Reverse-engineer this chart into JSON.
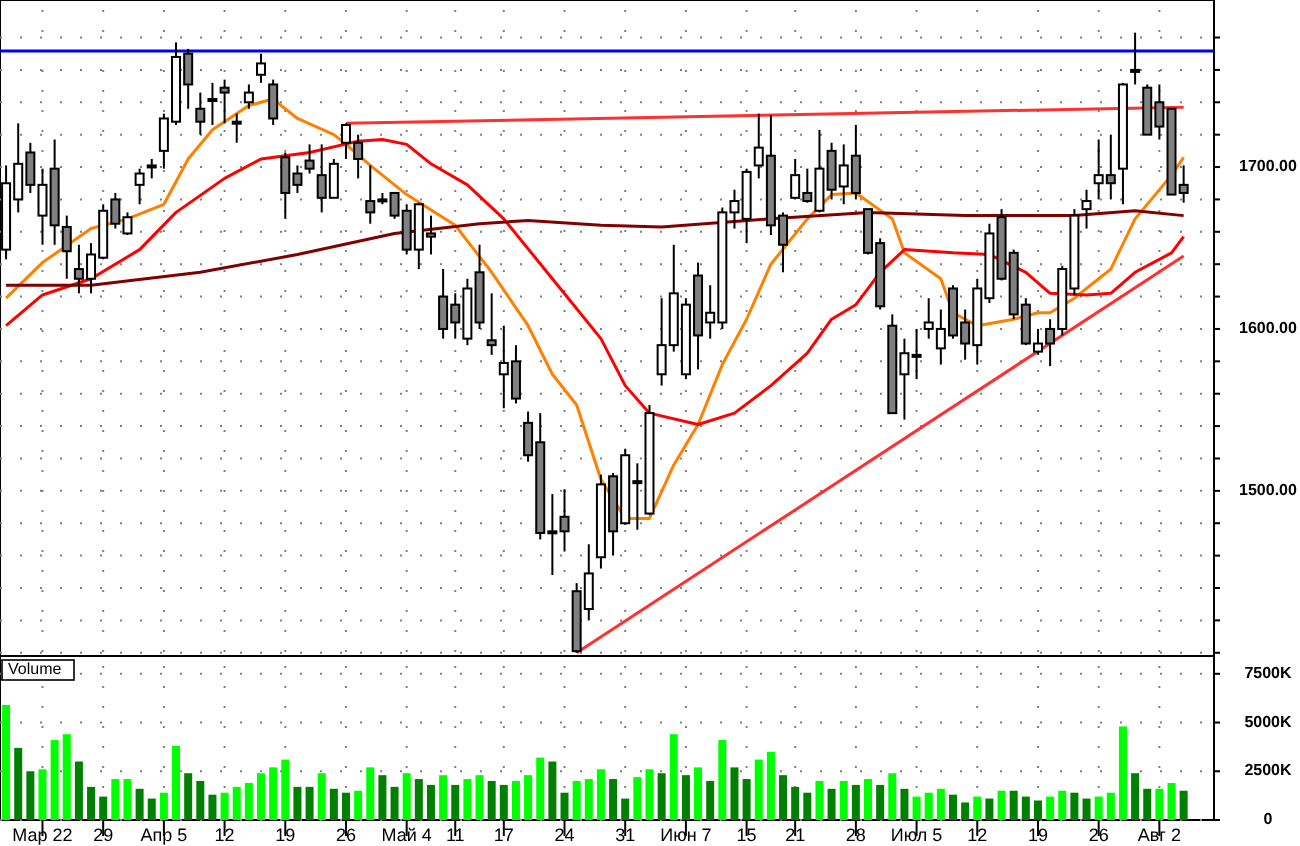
{
  "chart_data": [
    {
      "type": "candlestick",
      "categories": [
        null,
        null,
        null,
        null,
        null,
        null,
        null,
        null,
        null,
        null,
        null,
        null,
        null,
        null,
        null,
        null,
        null,
        null,
        null,
        null,
        null,
        null,
        null,
        null,
        null,
        null,
        null,
        null,
        null,
        null,
        null,
        null,
        null,
        null,
        null,
        null,
        null,
        null,
        null,
        null,
        null,
        null,
        null,
        null,
        null,
        null,
        null,
        null,
        null,
        null,
        null,
        null,
        null,
        null,
        null,
        null,
        null,
        null,
        null,
        null,
        null,
        null,
        null,
        null,
        null,
        null,
        null,
        null,
        null,
        null,
        null,
        null,
        null,
        null,
        null,
        null,
        null,
        null,
        null,
        null,
        null,
        null,
        null,
        null,
        null,
        null,
        null,
        null,
        null,
        null,
        null,
        null,
        null,
        null,
        null,
        null,
        null,
        null
      ],
      "ohlc": [
        [
          1649,
          1701,
          1643,
          1690
        ],
        [
          1680,
          1727,
          1672,
          1702
        ],
        [
          1709,
          1715,
          1684,
          1689
        ],
        [
          1670,
          1699,
          1652,
          1689
        ],
        [
          1699,
          1717,
          1652,
          1664
        ],
        [
          1663,
          1670,
          1631,
          1648
        ],
        [
          1637,
          1652,
          1622,
          1631
        ],
        [
          1631,
          1653,
          1622,
          1646
        ],
        [
          1644,
          1677,
          1643,
          1673
        ],
        [
          1680,
          1684,
          1662,
          1665
        ],
        [
          1659,
          1672,
          1658,
          1669
        ],
        [
          1689,
          1699,
          1677,
          1696
        ],
        [
          1701,
          1705,
          1693,
          1701
        ],
        [
          1710,
          1733,
          1699,
          1730
        ],
        [
          1728,
          1777,
          1726,
          1768
        ],
        [
          1770,
          1773,
          1736,
          1751
        ],
        [
          1736,
          1746,
          1720,
          1728
        ],
        [
          1741,
          1752,
          1726,
          1742
        ],
        [
          1749,
          1754,
          1727,
          1746
        ],
        [
          1728,
          1733,
          1715,
          1728
        ],
        [
          1740,
          1751,
          1736,
          1746
        ],
        [
          1757,
          1770,
          1752,
          1764
        ],
        [
          1751,
          1754,
          1726,
          1730
        ],
        [
          1706,
          1709,
          1668,
          1684
        ],
        [
          1696,
          1701,
          1684,
          1689
        ],
        [
          1704,
          1714,
          1696,
          1699
        ],
        [
          1695,
          1714,
          1672,
          1681
        ],
        [
          1681,
          1705,
          1681,
          1702
        ],
        [
          1715,
          1727,
          1705,
          1726
        ],
        [
          1715,
          1720,
          1693,
          1705
        ],
        [
          1679,
          1701,
          1665,
          1672
        ],
        [
          1680,
          1684,
          1677,
          1680
        ],
        [
          1684,
          1684,
          1668,
          1670
        ],
        [
          1673,
          1677,
          1646,
          1649
        ],
        [
          1649,
          1678,
          1637,
          1677
        ],
        [
          1659,
          1670,
          1646,
          1657
        ],
        [
          1620,
          1637,
          1594,
          1600
        ],
        [
          1615,
          1622,
          1594,
          1604
        ],
        [
          1594,
          1631,
          1590,
          1625
        ],
        [
          1635,
          1652,
          1600,
          1604
        ],
        [
          1593,
          1622,
          1584,
          1590
        ],
        [
          1572,
          1602,
          1551,
          1579
        ],
        [
          1580,
          1590,
          1554,
          1557
        ],
        [
          1542,
          1549,
          1518,
          1522
        ],
        [
          1530,
          1548,
          1470,
          1474
        ],
        [
          1475,
          1498,
          1448,
          1474
        ],
        [
          1484,
          1501,
          1463,
          1475
        ],
        [
          1438,
          1443,
          1400,
          1401
        ],
        [
          1427,
          1467,
          1420,
          1449
        ],
        [
          1459,
          1510,
          1452,
          1504
        ],
        [
          1509,
          1511,
          1460,
          1475
        ],
        [
          1480,
          1526,
          1479,
          1522
        ],
        [
          1506,
          1517,
          1476,
          1506
        ],
        [
          1486,
          1553,
          1485,
          1548
        ],
        [
          1572,
          1619,
          1565,
          1590
        ],
        [
          1590,
          1652,
          1586,
          1622
        ],
        [
          1572,
          1619,
          1569,
          1615
        ],
        [
          1633,
          1641,
          1575,
          1596
        ],
        [
          1604,
          1627,
          1594,
          1610
        ],
        [
          1604,
          1675,
          1600,
          1672
        ],
        [
          1672,
          1686,
          1662,
          1679
        ],
        [
          1668,
          1699,
          1653,
          1697
        ],
        [
          1701,
          1733,
          1693,
          1712
        ],
        [
          1707,
          1732,
          1658,
          1664
        ],
        [
          1670,
          1672,
          1635,
          1652
        ],
        [
          1681,
          1705,
          1680,
          1695
        ],
        [
          1684,
          1699,
          1678,
          1679
        ],
        [
          1673,
          1723,
          1672,
          1699
        ],
        [
          1710,
          1715,
          1680,
          1686
        ],
        [
          1688,
          1714,
          1677,
          1701
        ],
        [
          1707,
          1726,
          1680,
          1684
        ],
        [
          1674,
          1674,
          1646,
          1647
        ],
        [
          1653,
          1656,
          1612,
          1614
        ],
        [
          1602,
          1609,
          1548,
          1548
        ],
        [
          1572,
          1594,
          1544,
          1585
        ],
        [
          1584,
          1600,
          1569,
          1584
        ],
        [
          1600,
          1619,
          1594,
          1604
        ],
        [
          1588,
          1612,
          1578,
          1600
        ],
        [
          1625,
          1627,
          1594,
          1596
        ],
        [
          1604,
          1612,
          1581,
          1591
        ],
        [
          1590,
          1631,
          1578,
          1625
        ],
        [
          1619,
          1665,
          1616,
          1659
        ],
        [
          1669,
          1674,
          1630,
          1631
        ],
        [
          1647,
          1649,
          1606,
          1609
        ],
        [
          1615,
          1619,
          1590,
          1591
        ],
        [
          1586,
          1600,
          1584,
          1591
        ],
        [
          1600,
          1606,
          1577,
          1591
        ],
        [
          1600,
          1639,
          1596,
          1637
        ],
        [
          1625,
          1674,
          1621,
          1670
        ],
        [
          1674,
          1686,
          1662,
          1679
        ],
        [
          1690,
          1717,
          1680,
          1695
        ],
        [
          1695,
          1720,
          1680,
          1690
        ],
        [
          1699,
          1752,
          1677,
          1751
        ],
        [
          1760,
          1783,
          1751,
          1760
        ],
        [
          1749,
          1751,
          1720,
          1720
        ],
        [
          1740,
          1751,
          1717,
          1725
        ],
        [
          1736,
          1736,
          1683,
          1683
        ],
        [
          1689,
          1701,
          1678,
          1684
        ]
      ],
      "series": [
        {
          "type": "line",
          "color": "#ff8000",
          "values": [
            1619,
            null,
            null,
            1641,
            null,
            null,
            null,
            1662,
            null,
            null,
            1668,
            null,
            null,
            1677,
            null,
            1705,
            null,
            1723,
            null,
            null,
            1738,
            null,
            1742,
            null,
            1730,
            null,
            null,
            1720,
            1714,
            null,
            1701,
            null,
            null,
            1683,
            null,
            null,
            null,
            1664,
            null,
            null,
            1635,
            null,
            null,
            1602,
            null,
            1572,
            null,
            1553,
            null,
            1507,
            null,
            1483,
            null,
            1483,
            null,
            1516,
            null,
            1541,
            null,
            1578,
            null,
            1606,
            null,
            1640,
            null,
            null,
            1668,
            null,
            1683,
            null,
            1684,
            null,
            null,
            1668,
            1647,
            null,
            null,
            1631,
            1610,
            null,
            1602,
            null,
            null,
            1606,
            null,
            1610,
            1610,
            null,
            1619,
            null,
            1631,
            1637,
            null,
            1668,
            null,
            null,
            1695,
            1706
          ]
        },
        {
          "type": "line",
          "color": "#ff0000",
          "values": [
            1602,
            null,
            null,
            1621,
            null,
            null,
            null,
            1631,
            null,
            null,
            null,
            1649,
            null,
            null,
            1672,
            null,
            null,
            null,
            1693,
            null,
            null,
            1705,
            null,
            null,
            null,
            1709,
            null,
            null,
            null,
            1716,
            null,
            1717,
            null,
            1714,
            null,
            1702,
            null,
            null,
            1689,
            null,
            null,
            1668,
            null,
            null,
            null,
            1631,
            null,
            null,
            null,
            1594,
            null,
            1565,
            null,
            1548,
            null,
            null,
            null,
            1541,
            null,
            null,
            1548,
            null,
            null,
            1565,
            null,
            null,
            1585,
            null,
            1606,
            null,
            1615,
            null,
            1635,
            null,
            1649,
            null,
            null,
            null,
            1647,
            null,
            null,
            1646,
            null,
            null,
            1635,
            null,
            1622,
            null,
            null,
            1621,
            null,
            1622,
            null,
            1635,
            null,
            null,
            1647,
            1657
          ]
        },
        {
          "type": "line",
          "color": "#800000",
          "values": [
            1627,
            null,
            null,
            null,
            null,
            null,
            null,
            1627,
            null,
            null,
            null,
            null,
            null,
            null,
            null,
            null,
            1635,
            null,
            null,
            null,
            null,
            null,
            null,
            null,
            1646,
            null,
            null,
            null,
            null,
            null,
            null,
            null,
            1659,
            null,
            null,
            null,
            null,
            null,
            null,
            1665,
            null,
            null,
            null,
            1667,
            null,
            null,
            null,
            null,
            null,
            1664,
            null,
            null,
            null,
            null,
            1663,
            null,
            null,
            null,
            null,
            null,
            null,
            null,
            null,
            1668,
            null,
            null,
            null,
            null,
            null,
            null,
            null,
            1672,
            null,
            null,
            null,
            null,
            null,
            null,
            null,
            1670,
            null,
            null,
            null,
            null,
            null,
            null,
            null,
            null,
            1670,
            null,
            null,
            null,
            null,
            1673,
            null,
            null,
            null,
            1670
          ]
        },
        {
          "type": "line",
          "color": "#ff3030",
          "values": [
            null,
            null,
            null,
            null,
            null,
            null,
            null,
            null,
            null,
            null,
            null,
            null,
            null,
            null,
            null,
            null,
            null,
            null,
            null,
            null,
            null,
            null,
            null,
            null,
            null,
            null,
            null,
            null,
            1727,
            null,
            null,
            null,
            null,
            null,
            null,
            null,
            null,
            null,
            null,
            null,
            null,
            null,
            null,
            null,
            null,
            null,
            null,
            null,
            null,
            null,
            null,
            null,
            null,
            null,
            null,
            null,
            null,
            null,
            null,
            null,
            null,
            null,
            null,
            null,
            null,
            null,
            null,
            null,
            null,
            null,
            null,
            null,
            null,
            null,
            null,
            null,
            null,
            null,
            null,
            null,
            null,
            null,
            null,
            null,
            null,
            null,
            null,
            null,
            null,
            null,
            null,
            null,
            null,
            null,
            null,
            null,
            null,
            1737
          ]
        },
        {
          "type": "line",
          "color": "#ff3030",
          "values": [
            null,
            null,
            null,
            null,
            null,
            null,
            null,
            null,
            null,
            null,
            null,
            null,
            null,
            null,
            null,
            null,
            null,
            null,
            null,
            null,
            null,
            null,
            null,
            null,
            null,
            null,
            null,
            null,
            null,
            null,
            null,
            null,
            null,
            null,
            null,
            null,
            null,
            null,
            null,
            null,
            null,
            null,
            null,
            null,
            null,
            null,
            null,
            1400,
            null,
            null,
            null,
            null,
            null,
            null,
            null,
            null,
            null,
            null,
            null,
            null,
            null,
            null,
            null,
            null,
            null,
            null,
            null,
            null,
            null,
            null,
            null,
            null,
            null,
            null,
            null,
            null,
            null,
            null,
            null,
            null,
            null,
            null,
            null,
            null,
            null,
            null,
            null,
            null,
            null,
            null,
            null,
            null,
            null,
            null,
            null,
            null,
            null,
            1645
          ]
        }
      ],
      "ref_lines": [
        {
          "axis": "y",
          "value": 1771.6,
          "color": "#0000ff"
        }
      ],
      "ylim": [
        1398,
        1797
      ],
      "yticks": [
        {
          "value": 1400,
          "label": null
        },
        {
          "value": 1420,
          "label": null
        },
        {
          "value": 1440,
          "label": null
        },
        {
          "value": 1460,
          "label": null
        },
        {
          "value": 1480,
          "label": null
        },
        {
          "value": 1500,
          "label": "1500.00"
        },
        {
          "value": 1520,
          "label": null
        },
        {
          "value": 1540,
          "label": null
        },
        {
          "value": 1560,
          "label": null
        },
        {
          "value": 1580,
          "label": null
        },
        {
          "value": 1600,
          "label": "1600.00"
        },
        {
          "value": 1620,
          "label": null
        },
        {
          "value": 1640,
          "label": null
        },
        {
          "value": 1660,
          "label": null
        },
        {
          "value": 1680,
          "label": null
        },
        {
          "value": 1700,
          "label": "1700.00"
        },
        {
          "value": 1720,
          "label": null
        },
        {
          "value": 1740,
          "label": null
        },
        {
          "value": 1760,
          "label": null
        },
        {
          "value": 1780,
          "label": null
        }
      ],
      "grid": true,
      "tick_labels": "y"
    },
    {
      "type": "bar",
      "title": "Volume",
      "categories": [
        null,
        null,
        null,
        "Мар 22",
        null,
        null,
        null,
        null,
        "29",
        null,
        null,
        null,
        null,
        "Апр 5",
        null,
        null,
        null,
        null,
        "12",
        null,
        null,
        null,
        null,
        "19",
        null,
        null,
        null,
        null,
        "26",
        null,
        null,
        null,
        null,
        "Май 4",
        null,
        null,
        null,
        "11",
        null,
        null,
        null,
        "17",
        null,
        null,
        null,
        null,
        "24",
        null,
        null,
        null,
        null,
        "31",
        null,
        null,
        null,
        null,
        "Июн 7",
        null,
        null,
        null,
        null,
        "15",
        null,
        null,
        null,
        "21",
        null,
        null,
        null,
        null,
        "28",
        null,
        null,
        null,
        null,
        "Июл 5",
        null,
        null,
        null,
        null,
        "12",
        null,
        null,
        null,
        null,
        "19",
        null,
        null,
        null,
        null,
        "26",
        null,
        null,
        null,
        null,
        "Авг 2",
        null,
        null
      ],
      "values": [
        5900,
        3700,
        2500,
        2600,
        4100,
        4400,
        3000,
        1700,
        1200,
        2100,
        2100,
        1600,
        1100,
        1400,
        3800,
        2400,
        2000,
        1300,
        1400,
        1700,
        1900,
        2400,
        2700,
        3100,
        1700,
        1700,
        2400,
        1600,
        1400,
        1500,
        2700,
        2300,
        1700,
        2400,
        2100,
        1800,
        2300,
        1800,
        2100,
        2300,
        2000,
        1800,
        2000,
        2300,
        3200,
        3000,
        1400,
        2000,
        2100,
        2600,
        2100,
        1100,
        2200,
        2600,
        2400,
        4400,
        2300,
        2700,
        2000,
        4100,
        2700,
        2100,
        3100,
        3500,
        2300,
        1700,
        1400,
        2000,
        1600,
        2000,
        1800,
        2100,
        1800,
        2400,
        1600,
        1200,
        1400,
        1600,
        1300,
        900,
        1200,
        1100,
        1500,
        1500,
        1200,
        1000,
        1200,
        1500,
        1400,
        1100,
        1200,
        1400,
        4800,
        2400,
        1600,
        1600,
        1900,
        1500
      ],
      "colors": [
        "#00ff00",
        "#008000",
        "#008000",
        "#00ff00",
        "#00ff00",
        "#00ff00",
        "#008000",
        "#008000",
        "#008000",
        "#00ff00",
        "#00ff00",
        "#008000",
        "#008000",
        "#00ff00",
        "#00ff00",
        "#008000",
        "#008000",
        "#008000",
        "#00ff00",
        "#00ff00",
        "#00ff00",
        "#00ff00",
        "#00ff00",
        "#00ff00",
        "#008000",
        "#008000",
        "#00ff00",
        "#008000",
        "#008000",
        "#00ff00",
        "#00ff00",
        "#008000",
        "#008000",
        "#00ff00",
        "#008000",
        "#008000",
        "#00ff00",
        "#008000",
        "#00ff00",
        "#00ff00",
        "#008000",
        "#008000",
        "#00ff00",
        "#00ff00",
        "#00ff00",
        "#008000",
        "#008000",
        "#00ff00",
        "#00ff00",
        "#00ff00",
        "#008000",
        "#008000",
        "#00ff00",
        "#00ff00",
        "#008000",
        "#00ff00",
        "#008000",
        "#00ff00",
        "#008000",
        "#00ff00",
        "#008000",
        "#008000",
        "#00ff00",
        "#00ff00",
        "#008000",
        "#008000",
        "#008000",
        "#00ff00",
        "#008000",
        "#00ff00",
        "#008000",
        "#00ff00",
        "#008000",
        "#00ff00",
        "#008000",
        "#00ff00",
        "#00ff00",
        "#00ff00",
        "#008000",
        "#008000",
        "#00ff00",
        "#008000",
        "#00ff00",
        "#008000",
        "#008000",
        "#008000",
        "#00ff00",
        "#00ff00",
        "#008000",
        "#008000",
        "#00ff00",
        "#00ff00",
        "#00ff00",
        "#008000",
        "#008000",
        "#00ff00",
        "#00ff00",
        "#008000"
      ],
      "ylim": [
        0,
        7900
      ],
      "yticks": [
        0,
        {
          "value": 2500,
          "label": "2500K"
        },
        {
          "value": 5000,
          "label": "5000K"
        },
        {
          "value": 7500,
          "label": "7500K"
        }
      ],
      "grid": true
    }
  ]
}
